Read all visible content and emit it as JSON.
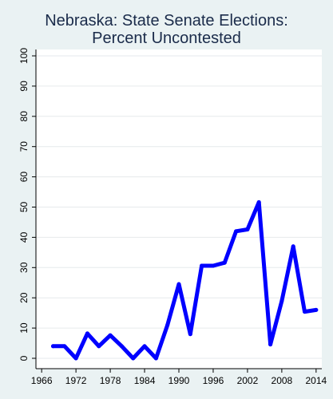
{
  "chart_data": {
    "type": "line",
    "title": [
      "Nebraska: State Senate Elections:",
      "Percent Uncontested"
    ],
    "xlabel": "",
    "ylabel": "",
    "xlim": [
      1965,
      2015
    ],
    "ylim": [
      0,
      100
    ],
    "x_ticks": [
      1966,
      1972,
      1978,
      1984,
      1990,
      1996,
      2002,
      2008,
      2014
    ],
    "y_ticks": [
      0,
      10,
      20,
      30,
      40,
      50,
      60,
      70,
      80,
      90,
      100
    ],
    "grid": true,
    "line_color": "#0000ff",
    "background_outer": "#eaf2f3",
    "background_plot": "#ffffff",
    "series": [
      {
        "x": [
          1968,
          1970,
          1972,
          1974,
          1976,
          1978,
          1980,
          1982,
          1984,
          1986,
          1988,
          1990,
          1992,
          1994,
          1996,
          1998,
          2000,
          2002,
          2004,
          2006,
          2008,
          2010,
          2012,
          2014
        ],
        "values": [
          4,
          4,
          0,
          8.2,
          4,
          7.6,
          4,
          0,
          4,
          0,
          11,
          24.5,
          8,
          30.6,
          30.6,
          31.6,
          42,
          42.6,
          51.6,
          4.6,
          19,
          37,
          15.4,
          16
        ]
      }
    ]
  }
}
